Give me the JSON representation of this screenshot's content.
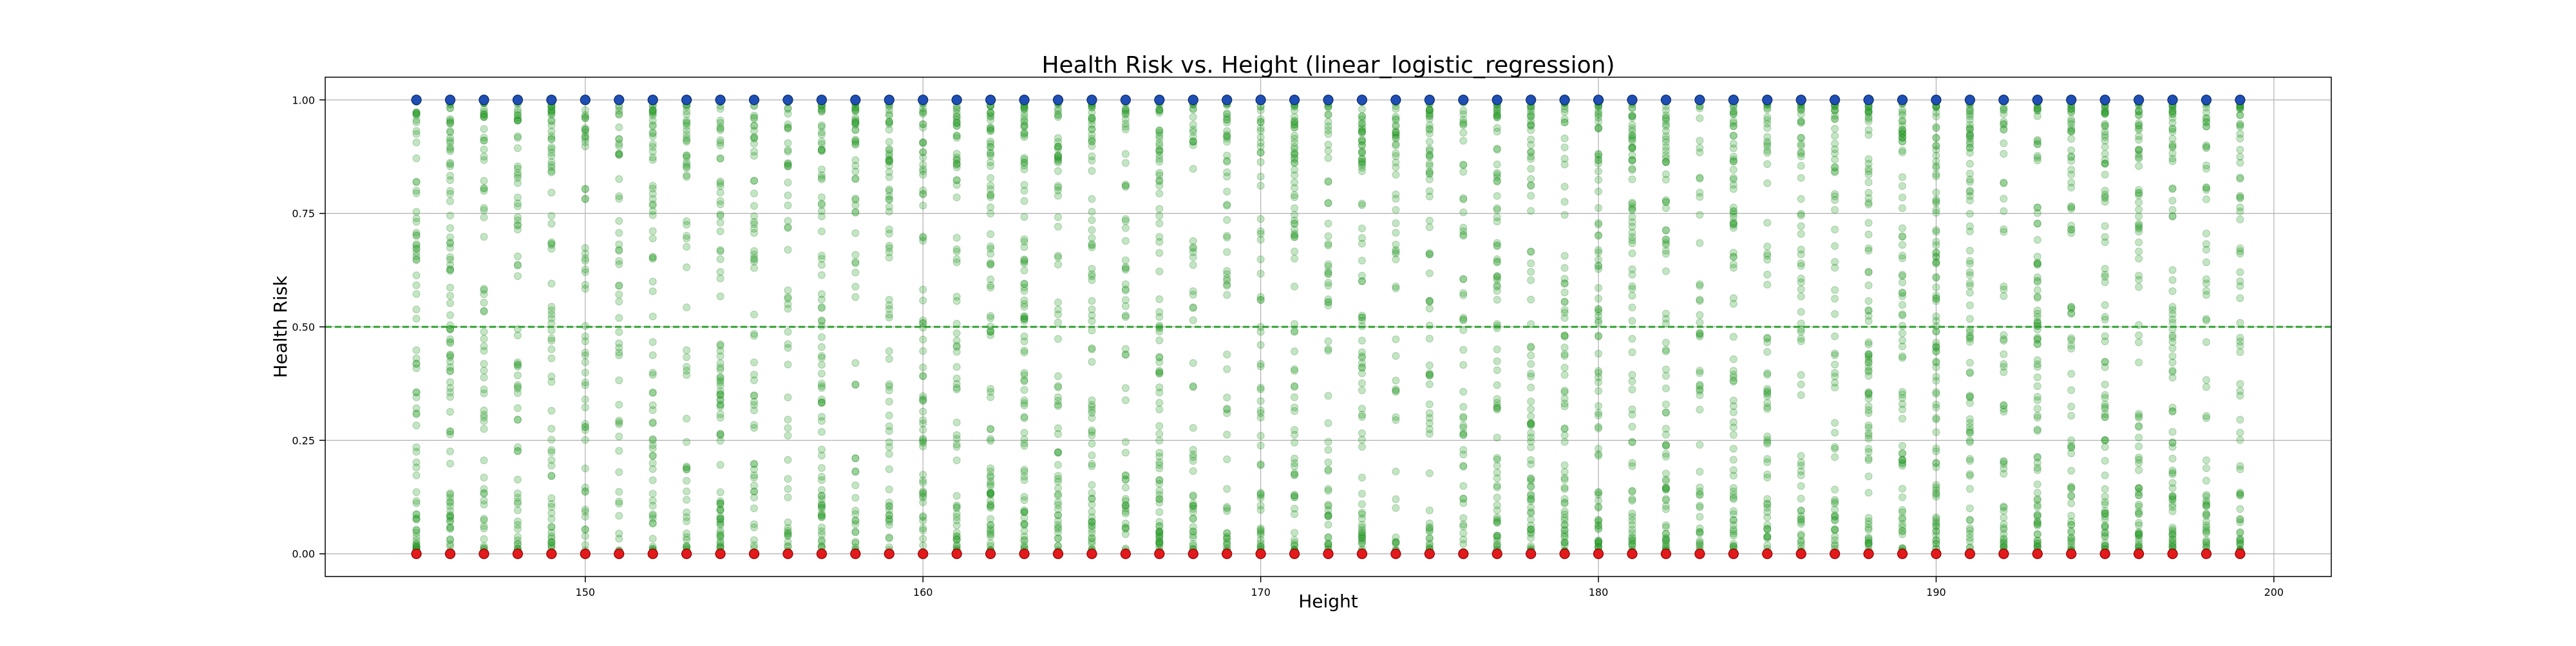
{
  "chart_data": {
    "type": "scatter",
    "title": "Health Risk vs. Height (linear_logistic_regression)",
    "xlabel": "Height",
    "ylabel": "Health Risk",
    "xlim": [
      142.3,
      201.7
    ],
    "ylim": [
      -0.05,
      1.05
    ],
    "xticks": [
      150,
      160,
      170,
      180,
      190,
      200
    ],
    "xtick_labels": [
      "150",
      "160",
      "170",
      "180",
      "190",
      "200"
    ],
    "yticks": [
      0.0,
      0.25,
      0.5,
      0.75,
      1.0
    ],
    "ytick_labels": [
      "0.00",
      "0.25",
      "0.50",
      "0.75",
      "1.00"
    ],
    "grid": true,
    "threshold_line": {
      "y": 0.5,
      "style": "dashed",
      "color": "#2ca02c"
    },
    "x_values": [
      145,
      146,
      147,
      148,
      149,
      150,
      151,
      152,
      153,
      154,
      155,
      156,
      157,
      158,
      159,
      160,
      161,
      162,
      163,
      164,
      165,
      166,
      167,
      168,
      169,
      170,
      171,
      172,
      173,
      174,
      175,
      176,
      177,
      178,
      179,
      180,
      181,
      182,
      183,
      184,
      185,
      186,
      187,
      188,
      189,
      190,
      191,
      192,
      193,
      194,
      195,
      196,
      197,
      198,
      199
    ],
    "series": [
      {
        "role": "predicted",
        "color": "#2ca02c",
        "alpha": 0.28,
        "marker": "circle",
        "description_of_values": "predicted probabilities spread between 0 and 1 at every integer height"
      },
      {
        "role": "actual_positive",
        "color": "#1f4fb4",
        "y": 1.0,
        "marker": "circle"
      },
      {
        "role": "actual_negative",
        "color": "#e31a1c",
        "y": 0.0,
        "marker": "circle"
      }
    ]
  }
}
